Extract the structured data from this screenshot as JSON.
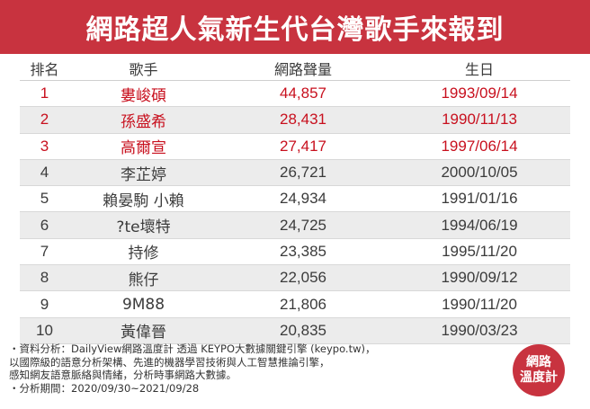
{
  "title": "網路超人氣新生代台灣歌手來報到",
  "colors": {
    "brand": "#c8333f",
    "highlight": "#c8101e"
  },
  "table": {
    "headers": {
      "rank": "排名",
      "name": "歌手",
      "volume": "網路聲量",
      "birthday": "生日"
    },
    "rows": [
      {
        "rank": "1",
        "name": "婁峻碩",
        "volume": "44,857",
        "birthday": "1993/09/14"
      },
      {
        "rank": "2",
        "name": "孫盛希",
        "volume": "28,431",
        "birthday": "1990/11/13"
      },
      {
        "rank": "3",
        "name": "高爾宣",
        "volume": "27,417",
        "birthday": "1997/06/14"
      },
      {
        "rank": "4",
        "name": "李芷婷",
        "volume": "26,721",
        "birthday": "2000/10/05"
      },
      {
        "rank": "5",
        "name": "賴晏駒 小賴",
        "volume": "24,934",
        "birthday": "1991/01/16"
      },
      {
        "rank": "6",
        "name": "?te壞特",
        "volume": "24,725",
        "birthday": "1994/06/19"
      },
      {
        "rank": "7",
        "name": "持修",
        "volume": "23,385",
        "birthday": "1995/11/20"
      },
      {
        "rank": "8",
        "name": "熊仔",
        "volume": "22,056",
        "birthday": "1990/09/12"
      },
      {
        "rank": "9",
        "name": "9M88",
        "volume": "21,806",
        "birthday": "1990/11/20"
      },
      {
        "rank": "10",
        "name": "黃偉晉",
        "volume": "20,835",
        "birthday": "1990/03/23"
      }
    ]
  },
  "footnote": {
    "line1": "・資料分析：DailyView網路溫度計 透過 KEYPO大數據關鍵引擎 (keypo.tw)，",
    "line2": "  以國際級的語意分析架構、先進的機器學習技術與人工智慧推論引擎，",
    "line3": "  感知網友語意脈絡與情緒，分析時事網路大數據。",
    "line4": "・分析期間：2020/09/30~2021/09/28"
  },
  "logo": {
    "line1": "網路",
    "line2": "溫度計"
  }
}
